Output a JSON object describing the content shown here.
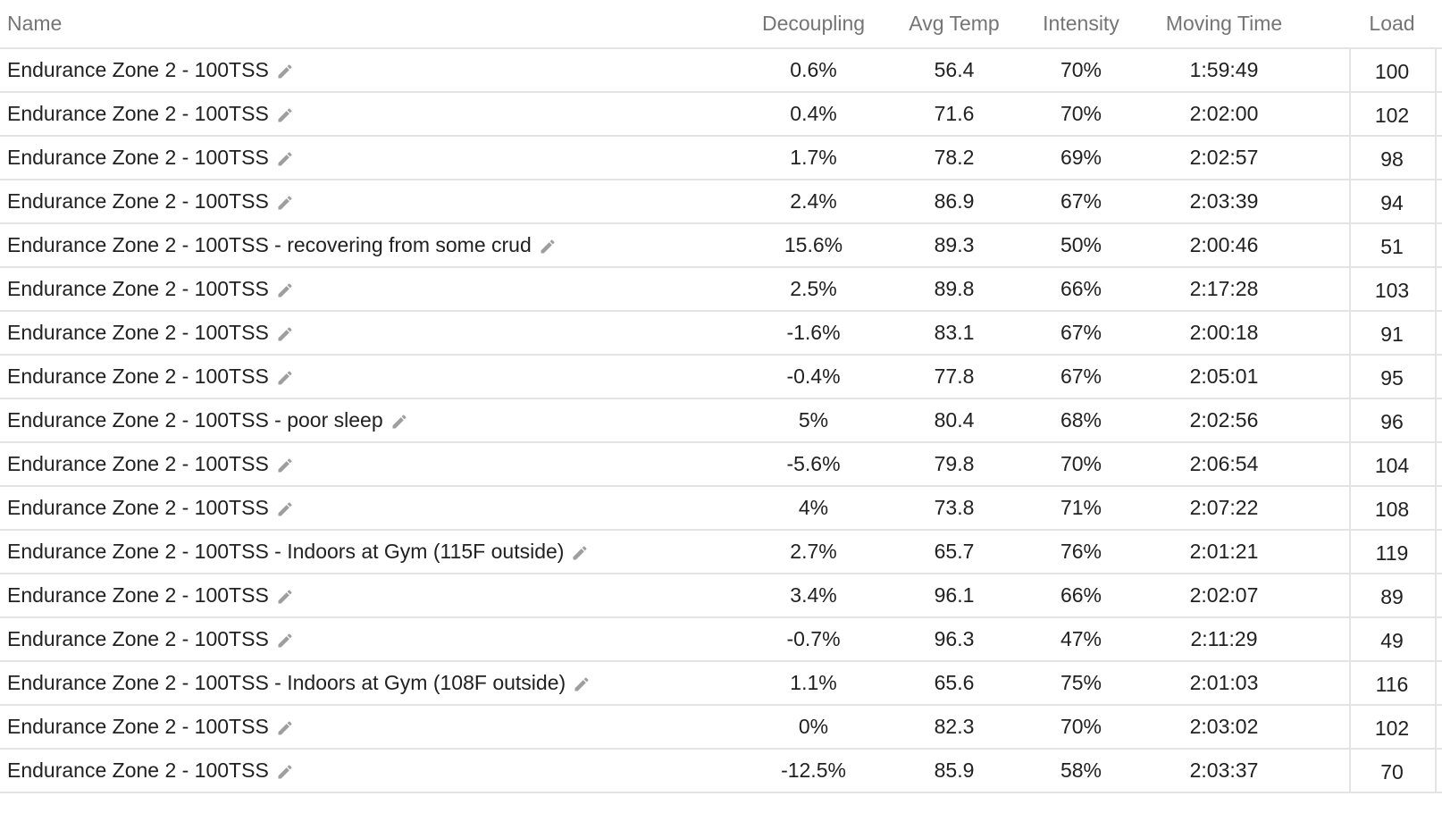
{
  "columns": {
    "name": "Name",
    "decoupling": "Decoupling",
    "avg_temp": "Avg Temp",
    "intensity": "Intensity",
    "moving_time": "Moving Time",
    "load": "Load"
  },
  "icons": {
    "edit": "pencil-edit-icon"
  },
  "colors": {
    "header_text": "#757575",
    "divider": "#e3e3e3",
    "icon": "#9e9e9e"
  },
  "rows": [
    {
      "name": "Endurance Zone 2 - 100TSS",
      "decoupling": "0.6%",
      "avg_temp": "56.4",
      "intensity": "70%",
      "moving_time": "1:59:49",
      "load": "100"
    },
    {
      "name": "Endurance Zone 2 - 100TSS",
      "decoupling": "0.4%",
      "avg_temp": "71.6",
      "intensity": "70%",
      "moving_time": "2:02:00",
      "load": "102"
    },
    {
      "name": "Endurance Zone 2 - 100TSS",
      "decoupling": "1.7%",
      "avg_temp": "78.2",
      "intensity": "69%",
      "moving_time": "2:02:57",
      "load": "98"
    },
    {
      "name": "Endurance Zone 2 - 100TSS",
      "decoupling": "2.4%",
      "avg_temp": "86.9",
      "intensity": "67%",
      "moving_time": "2:03:39",
      "load": "94"
    },
    {
      "name": "Endurance Zone 2 - 100TSS - recovering from some crud",
      "decoupling": "15.6%",
      "avg_temp": "89.3",
      "intensity": "50%",
      "moving_time": "2:00:46",
      "load": "51"
    },
    {
      "name": "Endurance Zone 2 - 100TSS",
      "decoupling": "2.5%",
      "avg_temp": "89.8",
      "intensity": "66%",
      "moving_time": "2:17:28",
      "load": "103"
    },
    {
      "name": "Endurance Zone 2 - 100TSS",
      "decoupling": "-1.6%",
      "avg_temp": "83.1",
      "intensity": "67%",
      "moving_time": "2:00:18",
      "load": "91"
    },
    {
      "name": "Endurance Zone 2 - 100TSS",
      "decoupling": "-0.4%",
      "avg_temp": "77.8",
      "intensity": "67%",
      "moving_time": "2:05:01",
      "load": "95"
    },
    {
      "name": "Endurance Zone 2 - 100TSS - poor sleep",
      "decoupling": "5%",
      "avg_temp": "80.4",
      "intensity": "68%",
      "moving_time": "2:02:56",
      "load": "96"
    },
    {
      "name": "Endurance Zone 2 - 100TSS",
      "decoupling": "-5.6%",
      "avg_temp": "79.8",
      "intensity": "70%",
      "moving_time": "2:06:54",
      "load": "104"
    },
    {
      "name": "Endurance Zone 2 - 100TSS",
      "decoupling": "4%",
      "avg_temp": "73.8",
      "intensity": "71%",
      "moving_time": "2:07:22",
      "load": "108"
    },
    {
      "name": "Endurance Zone 2 - 100TSS - Indoors at Gym (115F outside)",
      "decoupling": "2.7%",
      "avg_temp": "65.7",
      "intensity": "76%",
      "moving_time": "2:01:21",
      "load": "119"
    },
    {
      "name": "Endurance Zone 2 - 100TSS",
      "decoupling": "3.4%",
      "avg_temp": "96.1",
      "intensity": "66%",
      "moving_time": "2:02:07",
      "load": "89"
    },
    {
      "name": "Endurance Zone 2 - 100TSS",
      "decoupling": "-0.7%",
      "avg_temp": "96.3",
      "intensity": "47%",
      "moving_time": "2:11:29",
      "load": "49"
    },
    {
      "name": "Endurance Zone 2 - 100TSS - Indoors at Gym (108F outside)",
      "decoupling": "1.1%",
      "avg_temp": "65.6",
      "intensity": "75%",
      "moving_time": "2:01:03",
      "load": "116"
    },
    {
      "name": "Endurance Zone 2 - 100TSS",
      "decoupling": "0%",
      "avg_temp": "82.3",
      "intensity": "70%",
      "moving_time": "2:03:02",
      "load": "102"
    },
    {
      "name": "Endurance Zone 2 - 100TSS",
      "decoupling": "-12.5%",
      "avg_temp": "85.9",
      "intensity": "58%",
      "moving_time": "2:03:37",
      "load": "70"
    }
  ]
}
